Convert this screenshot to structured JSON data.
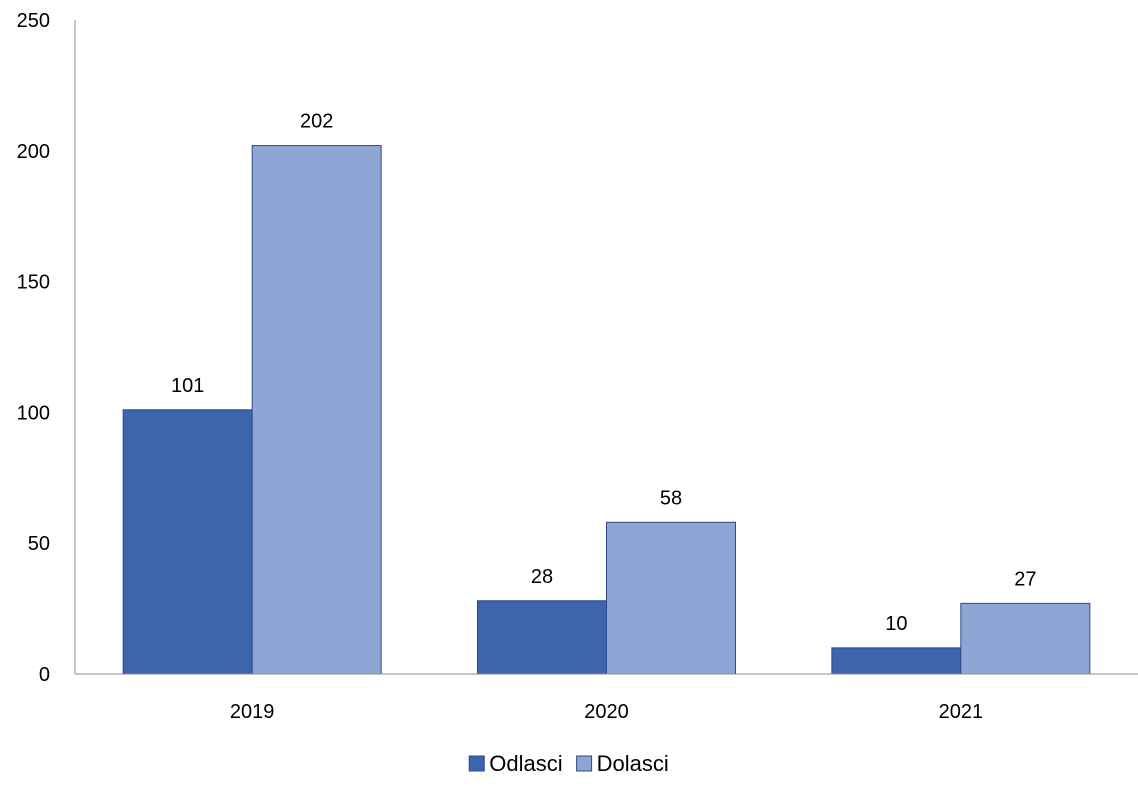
{
  "chart_data": {
    "type": "bar",
    "categories": [
      "2019",
      "2020",
      "2021"
    ],
    "series": [
      {
        "name": "Odlasci",
        "values": [
          101,
          28,
          10
        ],
        "color": "#3d64ad"
      },
      {
        "name": "Dolasci",
        "values": [
          202,
          58,
          27
        ],
        "color": "#8fa5d6"
      }
    ],
    "ylim": [
      0,
      250
    ],
    "yticks": [
      0,
      50,
      100,
      150,
      200,
      250
    ],
    "bar_stroke_color": "#2f4a86",
    "axis_color": "#8c8c8c",
    "grid": false,
    "data_labels": true,
    "legend_position": "bottom"
  }
}
